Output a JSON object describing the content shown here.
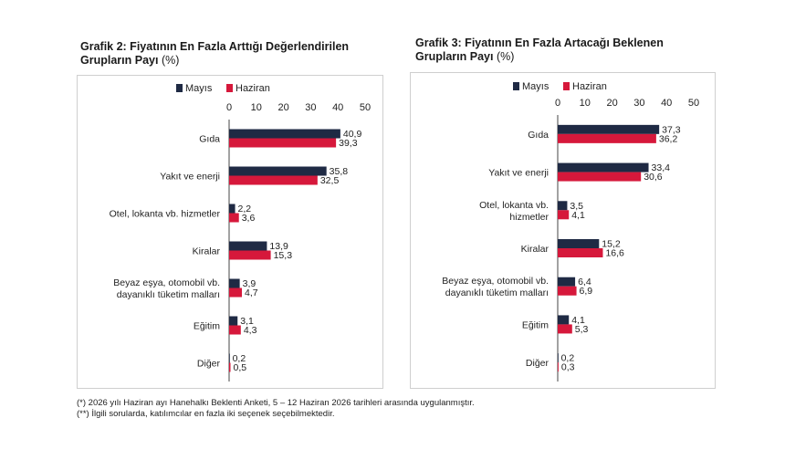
{
  "colors": {
    "mayis": "#1f2a44",
    "haziran": "#d6183b",
    "axis": "#444444"
  },
  "charts": [
    {
      "title_line1": "Grafik 2: Fiyatının En Fazla Arttığı Değerlendirilen",
      "title_line2": "Grupların Payı",
      "unit": "(%)"
    },
    {
      "title_line1": "Grafik 3: Fiyatının En Fazla Artacağı Beklenen",
      "title_line2": "Grupların Payı",
      "unit": "(%)"
    }
  ],
  "chart_data": [
    {
      "type": "bar",
      "orientation": "horizontal",
      "title": "Grafik 2: Fiyatının En Fazla Arttığı Değerlendirilen Grupların Payı (%)",
      "categories": [
        [
          "Gıda"
        ],
        [
          "Yakıt ve enerji"
        ],
        [
          "Otel, lokanta vb. hizmetler"
        ],
        [
          "Kiralar"
        ],
        [
          "Beyaz eşya, otomobil vb.",
          "dayanıklı tüketim malları"
        ],
        [
          "Eğitim"
        ],
        [
          "Diğer"
        ]
      ],
      "series": [
        {
          "name": "Mayıs",
          "values": [
            40.9,
            35.8,
            2.2,
            13.9,
            3.9,
            3.1,
            0.2
          ],
          "labels": [
            "40,9",
            "35,8",
            "2,2",
            "13,9",
            "3,9",
            "3,1",
            "0,2"
          ]
        },
        {
          "name": "Haziran",
          "values": [
            39.3,
            32.5,
            3.6,
            15.3,
            4.7,
            4.3,
            0.5
          ],
          "labels": [
            "39,3",
            "32,5",
            "3,6",
            "15,3",
            "4,7",
            "4,3",
            "0,5"
          ]
        }
      ],
      "xlim": [
        0,
        50
      ],
      "xticks": [
        "0",
        "10",
        "20",
        "30",
        "40",
        "50"
      ],
      "legend": "top",
      "grid": false
    },
    {
      "type": "bar",
      "orientation": "horizontal",
      "title": "Grafik 3: Fiyatının En Fazla Artacağı Beklenen Grupların Payı (%)",
      "categories": [
        [
          "Gıda"
        ],
        [
          "Yakıt ve enerji"
        ],
        [
          "Otel, lokanta vb.",
          "hizmetler"
        ],
        [
          "Kiralar"
        ],
        [
          "Beyaz eşya, otomobil vb.",
          "dayanıklı tüketim malları"
        ],
        [
          "Eğitim"
        ],
        [
          "Diğer"
        ]
      ],
      "series": [
        {
          "name": "Mayıs",
          "values": [
            37.3,
            33.4,
            3.5,
            15.2,
            6.4,
            4.1,
            0.2
          ],
          "labels": [
            "37,3",
            "33,4",
            "3,5",
            "15,2",
            "6,4",
            "4,1",
            "0,2"
          ]
        },
        {
          "name": "Haziran",
          "values": [
            36.2,
            30.6,
            4.1,
            16.6,
            6.9,
            5.3,
            0.3
          ],
          "labels": [
            "36,2",
            "30,6",
            "4,1",
            "16,6",
            "6,9",
            "5,3",
            "0,3"
          ]
        }
      ],
      "xlim": [
        0,
        50
      ],
      "xticks": [
        "0",
        "10",
        "20",
        "30",
        "40",
        "50"
      ],
      "legend": "top",
      "grid": false
    }
  ],
  "footnotes": [
    "(*) 2026 yılı Haziran ayı Hanehalkı Beklenti Anketi, 5 – 12 Haziran 2026 tarihleri arasında uygulanmıştır.",
    "(**) İlgili sorularda, katılımcılar en fazla iki seçenek seçebilmektedir."
  ]
}
